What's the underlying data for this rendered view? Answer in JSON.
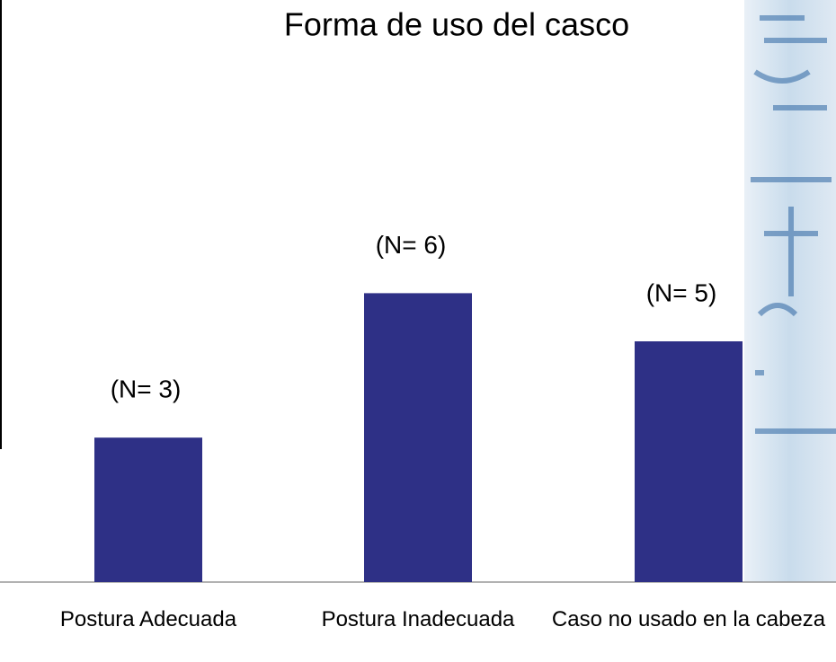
{
  "chart_data": {
    "type": "bar",
    "title": "Forma de uso del casco",
    "categories": [
      "Postura Adecuada",
      "Postura Inadecuada",
      "Caso no usado en la cabeza"
    ],
    "values": [
      3,
      6,
      5
    ],
    "value_labels": [
      "(N= 3)",
      "(N= 6)",
      "(N= 5)"
    ],
    "color": "#2e3086"
  }
}
